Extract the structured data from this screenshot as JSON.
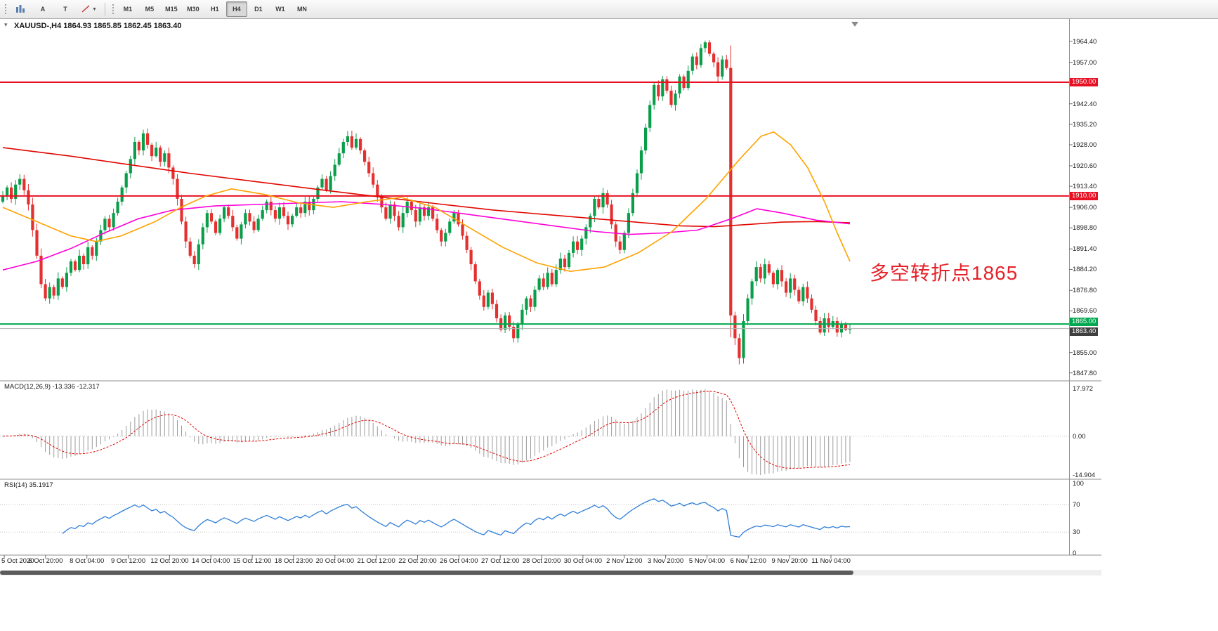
{
  "toolbar": {
    "tool_a": "A",
    "tool_t": "T",
    "timeframes": [
      "M1",
      "M5",
      "M15",
      "M30",
      "H1",
      "H4",
      "D1",
      "W1",
      "MN"
    ],
    "active_timeframe": "H4"
  },
  "chart_header": {
    "text": "XAUUSD-,H4  1864.93 1865.85 1862.45 1863.40"
  },
  "annotation": {
    "text": "多空转折点1865",
    "color": "#e62129"
  },
  "indicators": {
    "macd": {
      "label": "MACD(12,26,9) -13.336 -12.317",
      "axis_max": "17.972",
      "axis_zero": "0.00",
      "axis_min": "-14.904"
    },
    "rsi": {
      "label": "RSI(14) 35.1917",
      "axis": [
        "100",
        "70",
        "30",
        "0"
      ],
      "levels": [
        70,
        30
      ]
    }
  },
  "time_axis": {
    "labels": [
      "5 Oct 2020",
      "6 Oct 20:00",
      "8 Oct 04:00",
      "9 Oct 12:00",
      "12 Oct 20:00",
      "14 Oct 04:00",
      "15 Oct 12:00",
      "18 Oct 23:00",
      "20 Oct 04:00",
      "21 Oct 12:00",
      "22 Oct 20:00",
      "26 Oct 04:00",
      "27 Oct 12:00",
      "28 Oct 20:00",
      "30 Oct 04:00",
      "2 Nov 12:00",
      "3 Nov 20:00",
      "5 Nov 04:00",
      "6 Nov 12:00",
      "9 Nov 20:00",
      "11 Nov 04:00"
    ]
  },
  "chart_data": {
    "type": "candlestick",
    "symbol": "XAUUSD-",
    "timeframe": "H4",
    "ohlc_current": {
      "open": 1864.93,
      "high": 1865.85,
      "low": 1862.45,
      "close": 1863.4
    },
    "ylim": [
      1846,
      1970
    ],
    "price_axis_ticks": [
      1964.4,
      1957.0,
      1942.4,
      1935.2,
      1928.0,
      1920.6,
      1913.4,
      1906.0,
      1898.8,
      1891.4,
      1884.2,
      1876.8,
      1869.6,
      1855.0,
      1847.8
    ],
    "price_badges": [
      {
        "label": "1950.00",
        "price": 1950.0,
        "bg": "#e81123",
        "fg": "#ffffff",
        "dy": 0
      },
      {
        "label": "1910.00",
        "price": 1910.0,
        "bg": "#e81123",
        "fg": "#ffffff",
        "dy": 0
      },
      {
        "label": "1865.00",
        "price": 1865.0,
        "bg": "#00a84f",
        "fg": "#ffffff",
        "dy": -3
      },
      {
        "label": "1863.40",
        "price": 1863.4,
        "bg": "#3f3f3f",
        "fg": "#ffffff",
        "dy": 4
      }
    ],
    "hlines": [
      {
        "price": 1950.0,
        "color": "#e81123",
        "width": 2
      },
      {
        "price": 1910.0,
        "color": "#e81123",
        "width": 2
      },
      {
        "price": 1865.0,
        "color": "#00a84f",
        "width": 2
      },
      {
        "price": 1863.4,
        "color": "#b4b4b4",
        "width": 1
      }
    ],
    "colors": {
      "up": "#0a9e4a",
      "down": "#e53030"
    },
    "closes": [
      1910,
      1913,
      1909,
      1914,
      1916,
      1912,
      1907,
      1898,
      1889,
      1879,
      1874,
      1878,
      1875,
      1881,
      1878,
      1883,
      1887,
      1884,
      1889,
      1886,
      1892,
      1889,
      1894,
      1898,
      1902,
      1899,
      1904,
      1908,
      1913,
      1918,
      1923,
      1929,
      1926,
      1932,
      1928,
      1924,
      1927,
      1922,
      1925,
      1920,
      1916,
      1909,
      1901,
      1894,
      1889,
      1886,
      1893,
      1899,
      1904,
      1901,
      1897,
      1902,
      1906,
      1903,
      1899,
      1895,
      1900,
      1904,
      1901,
      1898,
      1902,
      1905,
      1908,
      1905,
      1902,
      1906,
      1903,
      1900,
      1903,
      1906,
      1904,
      1908,
      1905,
      1909,
      1913,
      1916,
      1912,
      1917,
      1921,
      1925,
      1929,
      1931,
      1927,
      1930,
      1926,
      1922,
      1918,
      1914,
      1910,
      1906,
      1902,
      1907,
      1903,
      1899,
      1904,
      1908,
      1905,
      1901,
      1906,
      1903,
      1906,
      1902,
      1898,
      1894,
      1897,
      1901,
      1904,
      1900,
      1896,
      1891,
      1886,
      1880,
      1875,
      1871,
      1876,
      1872,
      1867,
      1863,
      1868,
      1864,
      1860,
      1865,
      1870,
      1874,
      1871,
      1877,
      1881,
      1878,
      1883,
      1879,
      1884,
      1888,
      1885,
      1890,
      1894,
      1891,
      1895,
      1899,
      1903,
      1909,
      1906,
      1911,
      1907,
      1900,
      1894,
      1891,
      1897,
      1904,
      1911,
      1918,
      1926,
      1934,
      1942,
      1949,
      1945,
      1951,
      1947,
      1942,
      1946,
      1952,
      1948,
      1954,
      1959,
      1956,
      1962,
      1964,
      1960,
      1957,
      1952,
      1958,
      1955,
      1868,
      1860,
      1853,
      1866,
      1874,
      1880,
      1885,
      1881,
      1886,
      1883,
      1879,
      1884,
      1880,
      1876,
      1881,
      1877,
      1873,
      1878,
      1874,
      1870,
      1866,
      1862,
      1867,
      1864,
      1866,
      1862,
      1865,
      1863,
      1863.4
    ],
    "moving_averages": [
      {
        "name": "ma-red-slow",
        "color": "#e10600",
        "points": [
          [
            0,
            1927
          ],
          [
            0.08,
            1924
          ],
          [
            0.15,
            1921
          ],
          [
            0.22,
            1918
          ],
          [
            0.3,
            1915
          ],
          [
            0.38,
            1912
          ],
          [
            0.45,
            1909.5
          ],
          [
            0.52,
            1907
          ],
          [
            0.58,
            1905
          ],
          [
            0.64,
            1903.5
          ],
          [
            0.7,
            1902
          ],
          [
            0.76,
            1900.5
          ],
          [
            0.8,
            1899.5
          ],
          [
            0.84,
            1899.2
          ],
          [
            0.88,
            1900
          ],
          [
            0.92,
            1900.8
          ],
          [
            0.96,
            1901
          ],
          [
            1,
            1900.6
          ]
        ]
      },
      {
        "name": "ma-magenta-mid",
        "color": "#ff00d8",
        "points": [
          [
            0,
            1884
          ],
          [
            0.04,
            1887
          ],
          [
            0.08,
            1891.5
          ],
          [
            0.12,
            1897
          ],
          [
            0.16,
            1902
          ],
          [
            0.2,
            1905
          ],
          [
            0.25,
            1906.5
          ],
          [
            0.3,
            1907
          ],
          [
            0.35,
            1907.5
          ],
          [
            0.4,
            1908
          ],
          [
            0.45,
            1907
          ],
          [
            0.5,
            1905.5
          ],
          [
            0.55,
            1903.5
          ],
          [
            0.6,
            1901.5
          ],
          [
            0.65,
            1899.5
          ],
          [
            0.7,
            1897.5
          ],
          [
            0.74,
            1896.5
          ],
          [
            0.78,
            1897
          ],
          [
            0.82,
            1898
          ],
          [
            0.86,
            1902
          ],
          [
            0.89,
            1905.5
          ],
          [
            0.92,
            1904
          ],
          [
            0.96,
            1901.5
          ],
          [
            1,
            1900.2
          ]
        ]
      },
      {
        "name": "ma-orange-fast",
        "color": "#ffa200",
        "points": [
          [
            0,
            1906
          ],
          [
            0.04,
            1901
          ],
          [
            0.08,
            1896
          ],
          [
            0.11,
            1894
          ],
          [
            0.14,
            1896
          ],
          [
            0.18,
            1901
          ],
          [
            0.21,
            1906
          ],
          [
            0.24,
            1910
          ],
          [
            0.27,
            1912.5
          ],
          [
            0.31,
            1910.5
          ],
          [
            0.35,
            1907.5
          ],
          [
            0.39,
            1906
          ],
          [
            0.43,
            1908
          ],
          [
            0.47,
            1909.5
          ],
          [
            0.51,
            1906
          ],
          [
            0.55,
            1899
          ],
          [
            0.59,
            1892
          ],
          [
            0.63,
            1886.5
          ],
          [
            0.67,
            1883.5
          ],
          [
            0.71,
            1885
          ],
          [
            0.75,
            1890
          ],
          [
            0.79,
            1897.5
          ],
          [
            0.83,
            1909
          ],
          [
            0.87,
            1923
          ],
          [
            0.895,
            1931
          ],
          [
            0.91,
            1932.5
          ],
          [
            0.93,
            1928
          ],
          [
            0.95,
            1920
          ],
          [
            0.97,
            1908
          ],
          [
            0.985,
            1897
          ],
          [
            1,
            1887
          ]
        ]
      }
    ]
  }
}
